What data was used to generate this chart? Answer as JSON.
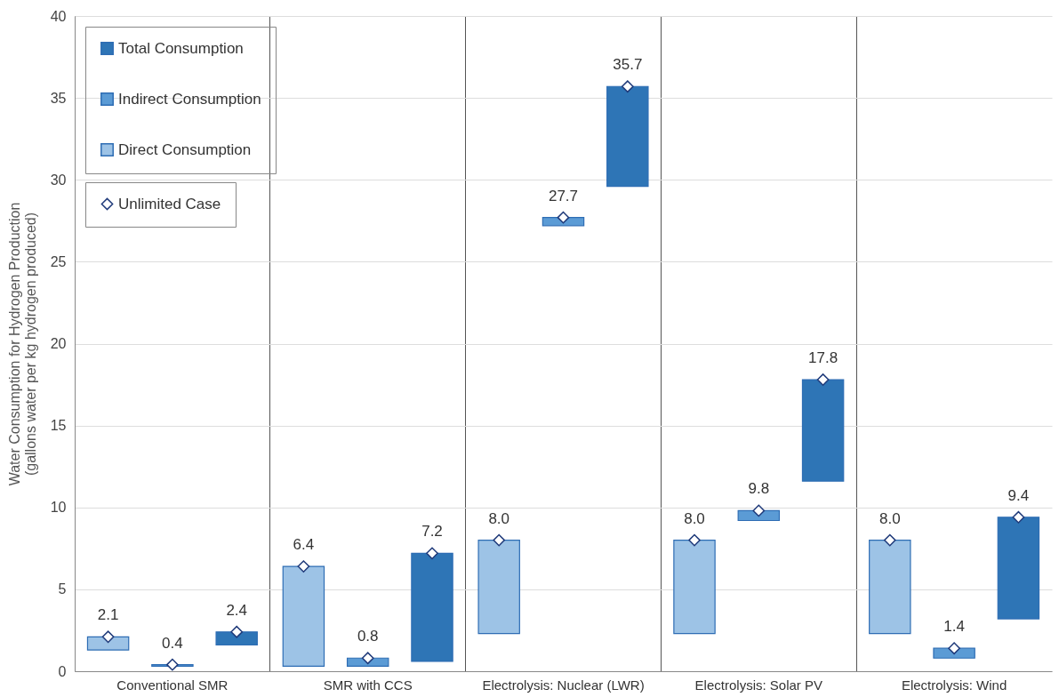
{
  "chart_data": {
    "type": "bar",
    "ylabel": "Water Consumption for Hydrogen Production\n(gallons water per kg hydrogen produced)",
    "categories": [
      "Conventional SMR",
      "SMR with CCS",
      "Electrolysis: Nuclear (LWR)",
      "Electrolysis: Solar PV",
      "Electrolysis: Wind"
    ],
    "series": [
      {
        "name": "Direct Consumption",
        "color": "#9dc3e6",
        "values": [
          0.8,
          6.1,
          5.7,
          5.7,
          5.7
        ],
        "base": [
          1.3,
          0.3,
          2.3,
          2.3,
          2.3
        ]
      },
      {
        "name": "Indirect Consumption",
        "color": "#5b9bd5",
        "values": [
          0.1,
          0.5,
          0.5,
          0.6,
          0.6
        ],
        "base": [
          0.3,
          0.3,
          27.2,
          9.2,
          0.8
        ]
      },
      {
        "name": "Total Consumption",
        "color": "#2e75b6",
        "values": [
          0.8,
          6.6,
          6.1,
          6.2,
          6.2
        ],
        "base": [
          1.6,
          0.6,
          29.6,
          11.6,
          3.2
        ]
      },
      {
        "name": "Unlimited Case",
        "type": "scatter",
        "marker": "diamond",
        "color": "#ffffff",
        "x": [
          "Conventional SMR",
          "Conventional SMR",
          "Conventional SMR",
          "SMR with CCS",
          "SMR with CCS",
          "SMR with CCS",
          "Electrolysis: Nuclear (LWR)",
          "Electrolysis: Nuclear (LWR)",
          "Electrolysis: Nuclear (LWR)",
          "Electrolysis: Solar PV",
          "Electrolysis: Solar PV",
          "Electrolysis: Solar PV",
          "Electrolysis: Wind",
          "Electrolysis: Wind",
          "Electrolysis: Wind"
        ],
        "values": [
          2.1,
          0.4,
          2.4,
          6.4,
          0.8,
          7.2,
          8.0,
          27.7,
          35.7,
          8.0,
          9.8,
          17.8,
          8.0,
          1.4,
          9.4
        ],
        "value_labels": [
          "2.1",
          "0.4",
          "2.4",
          "6.4",
          "0.8",
          "7.2",
          "8.0",
          "27.7",
          "35.7",
          "8.0",
          "9.8",
          "17.8",
          "8.0",
          "1.4",
          "9.4"
        ]
      }
    ],
    "ylim": [
      0,
      40
    ],
    "yticks": [
      0,
      5,
      10,
      15,
      20,
      25,
      30,
      35,
      40
    ],
    "grid": "y",
    "legend": "top left"
  }
}
